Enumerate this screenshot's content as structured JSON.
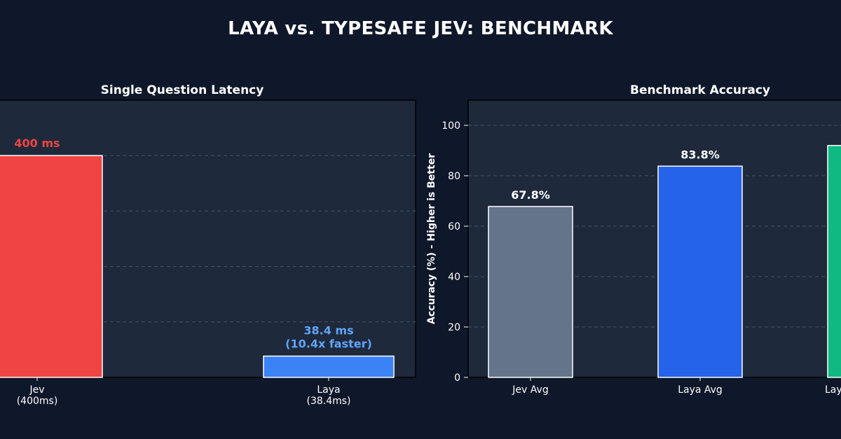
{
  "page": {
    "title": "LAYA vs. TYPESAFE JEV: BENCHMARK"
  },
  "chart_data": [
    {
      "type": "bar",
      "title": "Single Question Latency",
      "xlabel": "",
      "ylabel": "",
      "categories": [
        "Jev\n(400ms)",
        "Laya\n(38.4ms)"
      ],
      "values": [
        400,
        38.4
      ],
      "bar_labels": [
        "400 ms",
        "38.4 ms\n(10.4x faster)"
      ],
      "colors": [
        "#ef4444",
        "#3b82f6"
      ],
      "label_colors": [
        "#ef4444",
        "#60a5fa"
      ],
      "ylim": [
        0,
        500
      ],
      "grid": true
    },
    {
      "type": "bar",
      "title": "Benchmark Accuracy",
      "xlabel": "",
      "ylabel": "Accuracy (%) - Higher is Better",
      "categories": [
        "Jev Avg",
        "Laya Avg",
        "Lay"
      ],
      "values": [
        67.8,
        83.8,
        92
      ],
      "bar_labels": [
        "67.8%",
        "83.8%",
        ""
      ],
      "colors": [
        "#64748b",
        "#2563eb",
        "#10b981"
      ],
      "yticks": [
        0,
        20,
        40,
        60,
        80,
        100
      ],
      "ylim": [
        0,
        110
      ],
      "grid": true
    }
  ]
}
